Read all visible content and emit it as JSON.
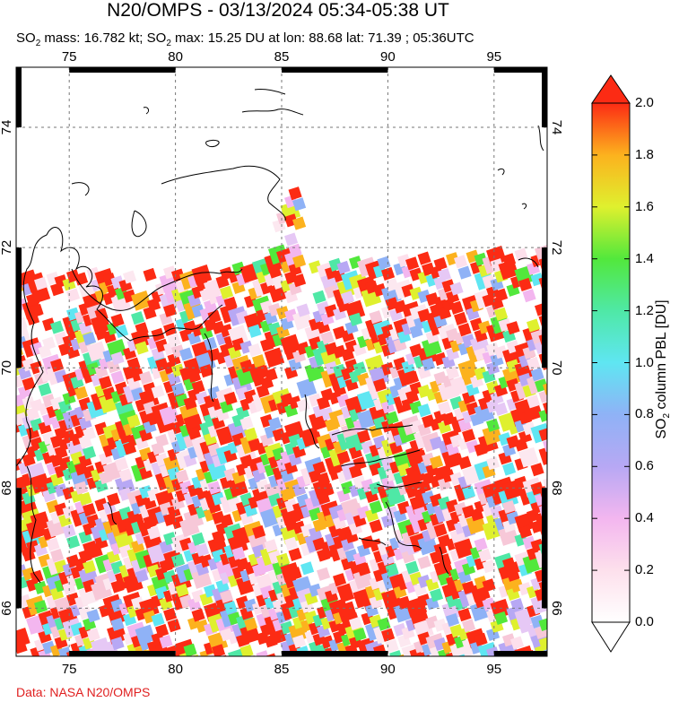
{
  "title": "N20/OMPS - 03/13/2024 05:34-05:38 UT",
  "subtitle": {
    "part1": "SO",
    "sub": "2",
    "part2": " mass: 16.782 kt; SO",
    "sub2": "2",
    "part3": " max: 15.25 DU at lon: 88.68 lat: 71.39 ; 05:36UTC"
  },
  "credit": "Data: NASA N20/OMPS",
  "map": {
    "lon_ticks": [
      "75",
      "80",
      "85",
      "90",
      "95"
    ],
    "lat_ticks": [
      "66",
      "68",
      "70",
      "72",
      "74"
    ],
    "lon_range": [
      72.5,
      97.5
    ],
    "lat_range": [
      65.2,
      75.0
    ]
  },
  "colorbar": {
    "title_pre": "SO",
    "title_sub": "2",
    "title_post": " column PBL [DU]",
    "labels": [
      "2.0",
      "1.8",
      "1.6",
      "1.4",
      "1.2",
      "1.0",
      "0.8",
      "0.6",
      "0.4",
      "0.2",
      "0.0"
    ],
    "min": 0.0,
    "max": 2.0
  }
}
